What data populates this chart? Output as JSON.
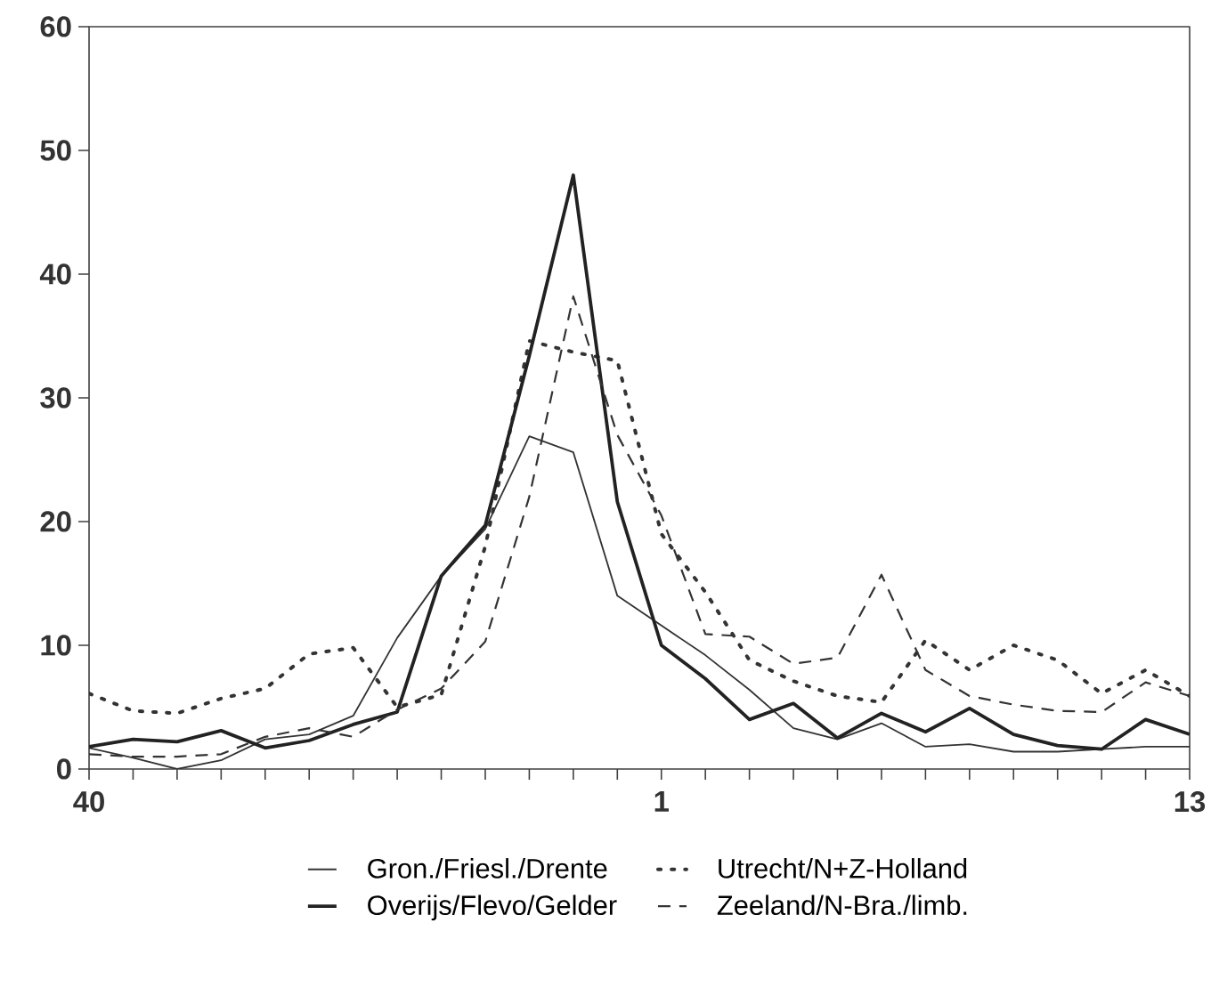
{
  "chart_data": {
    "type": "line",
    "categories": [
      "40",
      null,
      null,
      null,
      null,
      null,
      null,
      null,
      null,
      null,
      null,
      null,
      null,
      "1",
      null,
      null,
      null,
      null,
      null,
      null,
      null,
      null,
      null,
      null,
      null,
      "13"
    ],
    "series": [
      {
        "name": "Gron./Friesl./Drente",
        "color": "#333333",
        "line_style": "solid",
        "values": [
          1.7,
          0.9,
          0,
          0.7,
          2.4,
          2.8,
          4.3,
          10.6,
          15.6,
          19.4,
          26.9,
          25.6,
          14,
          11.6,
          9.2,
          6.4,
          3.3,
          2.4,
          3.7,
          1.8,
          2.0,
          1.4,
          1.4,
          1.6,
          1.8,
          1.8
        ]
      },
      {
        "name": "Utrecht/N+Z-Holland",
        "color": "#333333",
        "line_style": "dotted",
        "values": [
          6.1,
          4.7,
          4.5,
          5.7,
          6.5,
          9.3,
          9.8,
          5,
          6,
          18,
          34.6,
          33.7,
          33,
          19,
          14.3,
          8.8,
          7.1,
          5.9,
          5.4,
          10.4,
          8,
          10,
          8.8,
          6.1,
          8,
          5.9
        ]
      },
      {
        "name": "Overijs/Flevo/Gelder",
        "color": "#222222",
        "line_style": "solid",
        "values": [
          1.8,
          2.4,
          2.2,
          3.1,
          1.7,
          2.3,
          3.6,
          4.6,
          15.6,
          19.7,
          33.4,
          48,
          21.6,
          10,
          7.3,
          4,
          5.3,
          2.5,
          4.5,
          3,
          4.9,
          2.8,
          1.9,
          1.6,
          4,
          2.8
        ]
      },
      {
        "name": "Zeeland/N-Bra./limb.",
        "color": "#333333",
        "line_style": "dashed",
        "values": [
          1.2,
          1,
          1,
          1.2,
          2.6,
          3.3,
          2.6,
          4.8,
          6.5,
          10.3,
          22,
          38.2,
          27,
          20.5,
          10.9,
          10.7,
          8.5,
          9,
          15.7,
          8,
          5.9,
          5.2,
          4.7,
          4.6,
          7,
          5.9
        ]
      }
    ],
    "ylim": [
      0,
      60
    ],
    "yticks": [
      0,
      10,
      20,
      30,
      40,
      50,
      60
    ],
    "grid": false,
    "legend": "bottom"
  }
}
